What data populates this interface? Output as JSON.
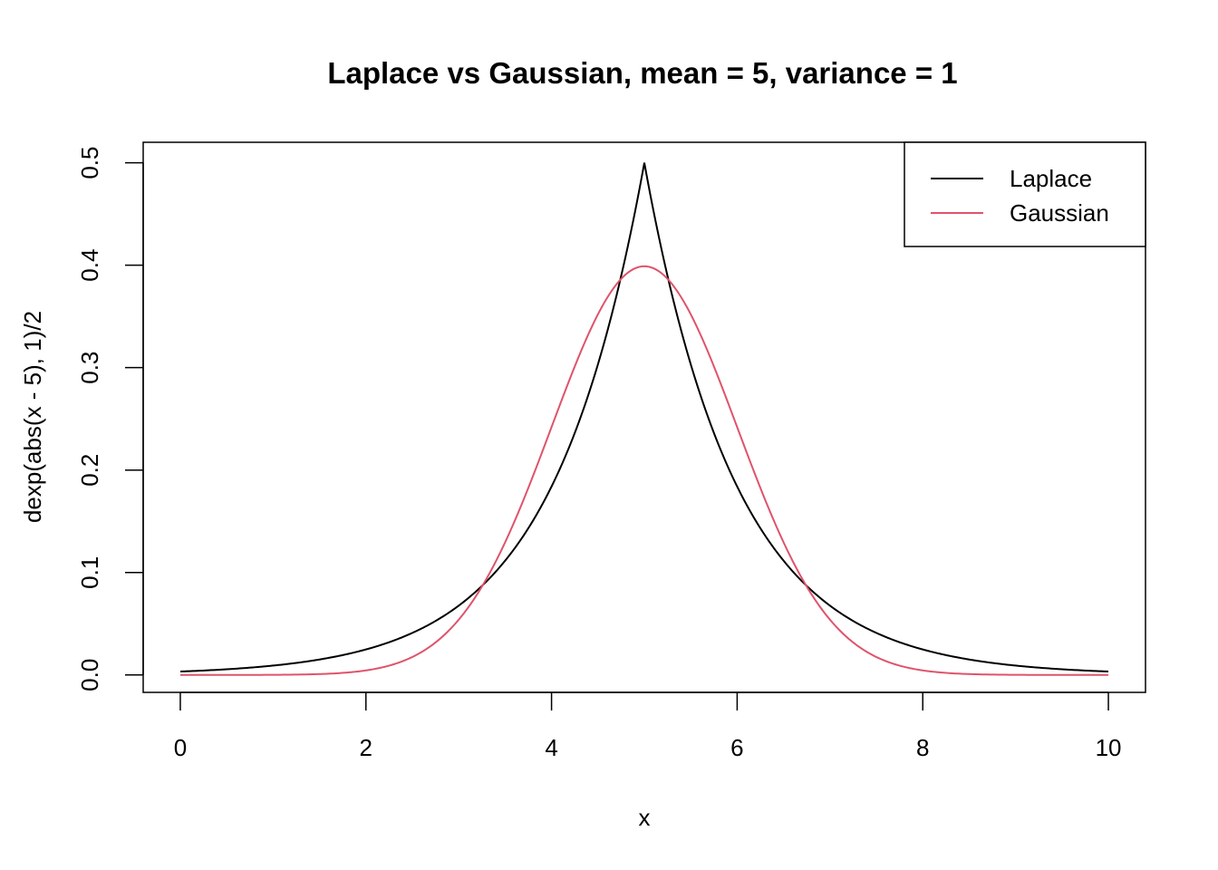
{
  "chart_data": {
    "type": "line",
    "title": "Laplace vs Gaussian, mean = 5, variance = 1",
    "xlabel": "x",
    "ylabel": "dexp(abs(x - 5), 1)/2",
    "xlim": [
      -0.4,
      10.4
    ],
    "ylim": [
      -0.017,
      0.52
    ],
    "x_ticks": [
      0,
      2,
      4,
      6,
      8,
      10
    ],
    "x_tick_labels": [
      "0",
      "2",
      "4",
      "6",
      "8",
      "10"
    ],
    "y_ticks": [
      0.0,
      0.1,
      0.2,
      0.3,
      0.4,
      0.5
    ],
    "y_tick_labels": [
      "0.0",
      "0.1",
      "0.2",
      "0.3",
      "0.4",
      "0.5"
    ],
    "grid": false,
    "legend_position": "top-right",
    "series": [
      {
        "name": "Laplace",
        "color": "#000000",
        "x": [
          0,
          0.5,
          1,
          1.5,
          2,
          2.5,
          3,
          3.5,
          4,
          4.25,
          4.5,
          4.75,
          5,
          5.25,
          5.5,
          5.75,
          6,
          6.5,
          7,
          7.5,
          8,
          8.5,
          9,
          9.5,
          10
        ],
        "y": [
          0.0034,
          0.0056,
          0.0092,
          0.0151,
          0.0249,
          0.041,
          0.0677,
          0.1116,
          0.1839,
          0.2362,
          0.3033,
          0.3894,
          0.5,
          0.3894,
          0.3033,
          0.2362,
          0.1839,
          0.1116,
          0.0677,
          0.041,
          0.0249,
          0.0151,
          0.0092,
          0.0056,
          0.0034
        ]
      },
      {
        "name": "Gaussian",
        "color": "#DF536B",
        "x": [
          0,
          0.5,
          1,
          1.5,
          2,
          2.5,
          3,
          3.25,
          3.5,
          3.75,
          4,
          4.25,
          4.5,
          4.75,
          5,
          5.25,
          5.5,
          5.75,
          6,
          6.25,
          6.5,
          6.75,
          7,
          7.5,
          8,
          8.5,
          9,
          9.5,
          10
        ],
        "y": [
          0.0,
          0.0,
          0.0001,
          0.0009,
          0.0044,
          0.0175,
          0.054,
          0.0863,
          0.1295,
          0.1826,
          0.242,
          0.3011,
          0.3521,
          0.3867,
          0.3989,
          0.3867,
          0.3521,
          0.3011,
          0.242,
          0.1826,
          0.1295,
          0.0863,
          0.054,
          0.0175,
          0.0044,
          0.0009,
          0.0001,
          0.0,
          0.0
        ]
      }
    ]
  }
}
